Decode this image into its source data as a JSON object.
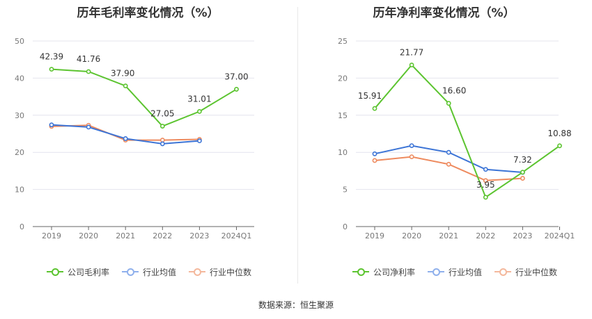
{
  "colors": {
    "company": "#5cc430",
    "industry_avg": "#3c74d6",
    "industry_median": "#ee8a5e",
    "legend_avg": "#8fb0ec",
    "legend_median": "#f4b89c"
  },
  "source_label": "数据来源：恒生聚源",
  "chart_data": [
    {
      "type": "line",
      "title": "历年毛利率变化情况（%）",
      "categories": [
        "2019",
        "2020",
        "2021",
        "2022",
        "2023",
        "2024Q1"
      ],
      "ylim": [
        0,
        50
      ],
      "yticks": [
        0,
        10,
        20,
        30,
        40,
        50
      ],
      "grid": true,
      "legend": "bottom",
      "series": [
        {
          "name": "公司毛利率",
          "key": "company",
          "values": [
            42.39,
            41.76,
            37.9,
            27.05,
            31.01,
            37.0
          ],
          "labels": [
            "42.39",
            "41.76",
            "37.90",
            "27.05",
            "31.01",
            "37.00"
          ]
        },
        {
          "name": "行业均值",
          "key": "industry_avg",
          "values": [
            27.4,
            26.8,
            23.7,
            22.3,
            23.1,
            null
          ]
        },
        {
          "name": "行业中位数",
          "key": "industry_median",
          "values": [
            27.0,
            27.3,
            23.3,
            23.3,
            23.5,
            null
          ]
        }
      ]
    },
    {
      "type": "line",
      "title": "历年净利率变化情况（%）",
      "categories": [
        "2019",
        "2020",
        "2021",
        "2022",
        "2023",
        "2024Q1"
      ],
      "ylim": [
        0,
        25
      ],
      "yticks": [
        0,
        5,
        10,
        15,
        20,
        25
      ],
      "grid": true,
      "legend": "bottom",
      "series": [
        {
          "name": "公司净利率",
          "key": "company",
          "values": [
            15.91,
            21.77,
            16.6,
            3.95,
            7.32,
            10.88
          ],
          "labels": [
            "15.91",
            "21.77",
            "16.60",
            "3.95",
            "7.32",
            "10.88"
          ]
        },
        {
          "name": "行业均值",
          "key": "industry_avg",
          "values": [
            9.8,
            10.9,
            10.0,
            7.7,
            7.3,
            null
          ]
        },
        {
          "name": "行业中位数",
          "key": "industry_median",
          "values": [
            8.9,
            9.4,
            8.4,
            6.2,
            6.5,
            null
          ]
        }
      ]
    }
  ]
}
